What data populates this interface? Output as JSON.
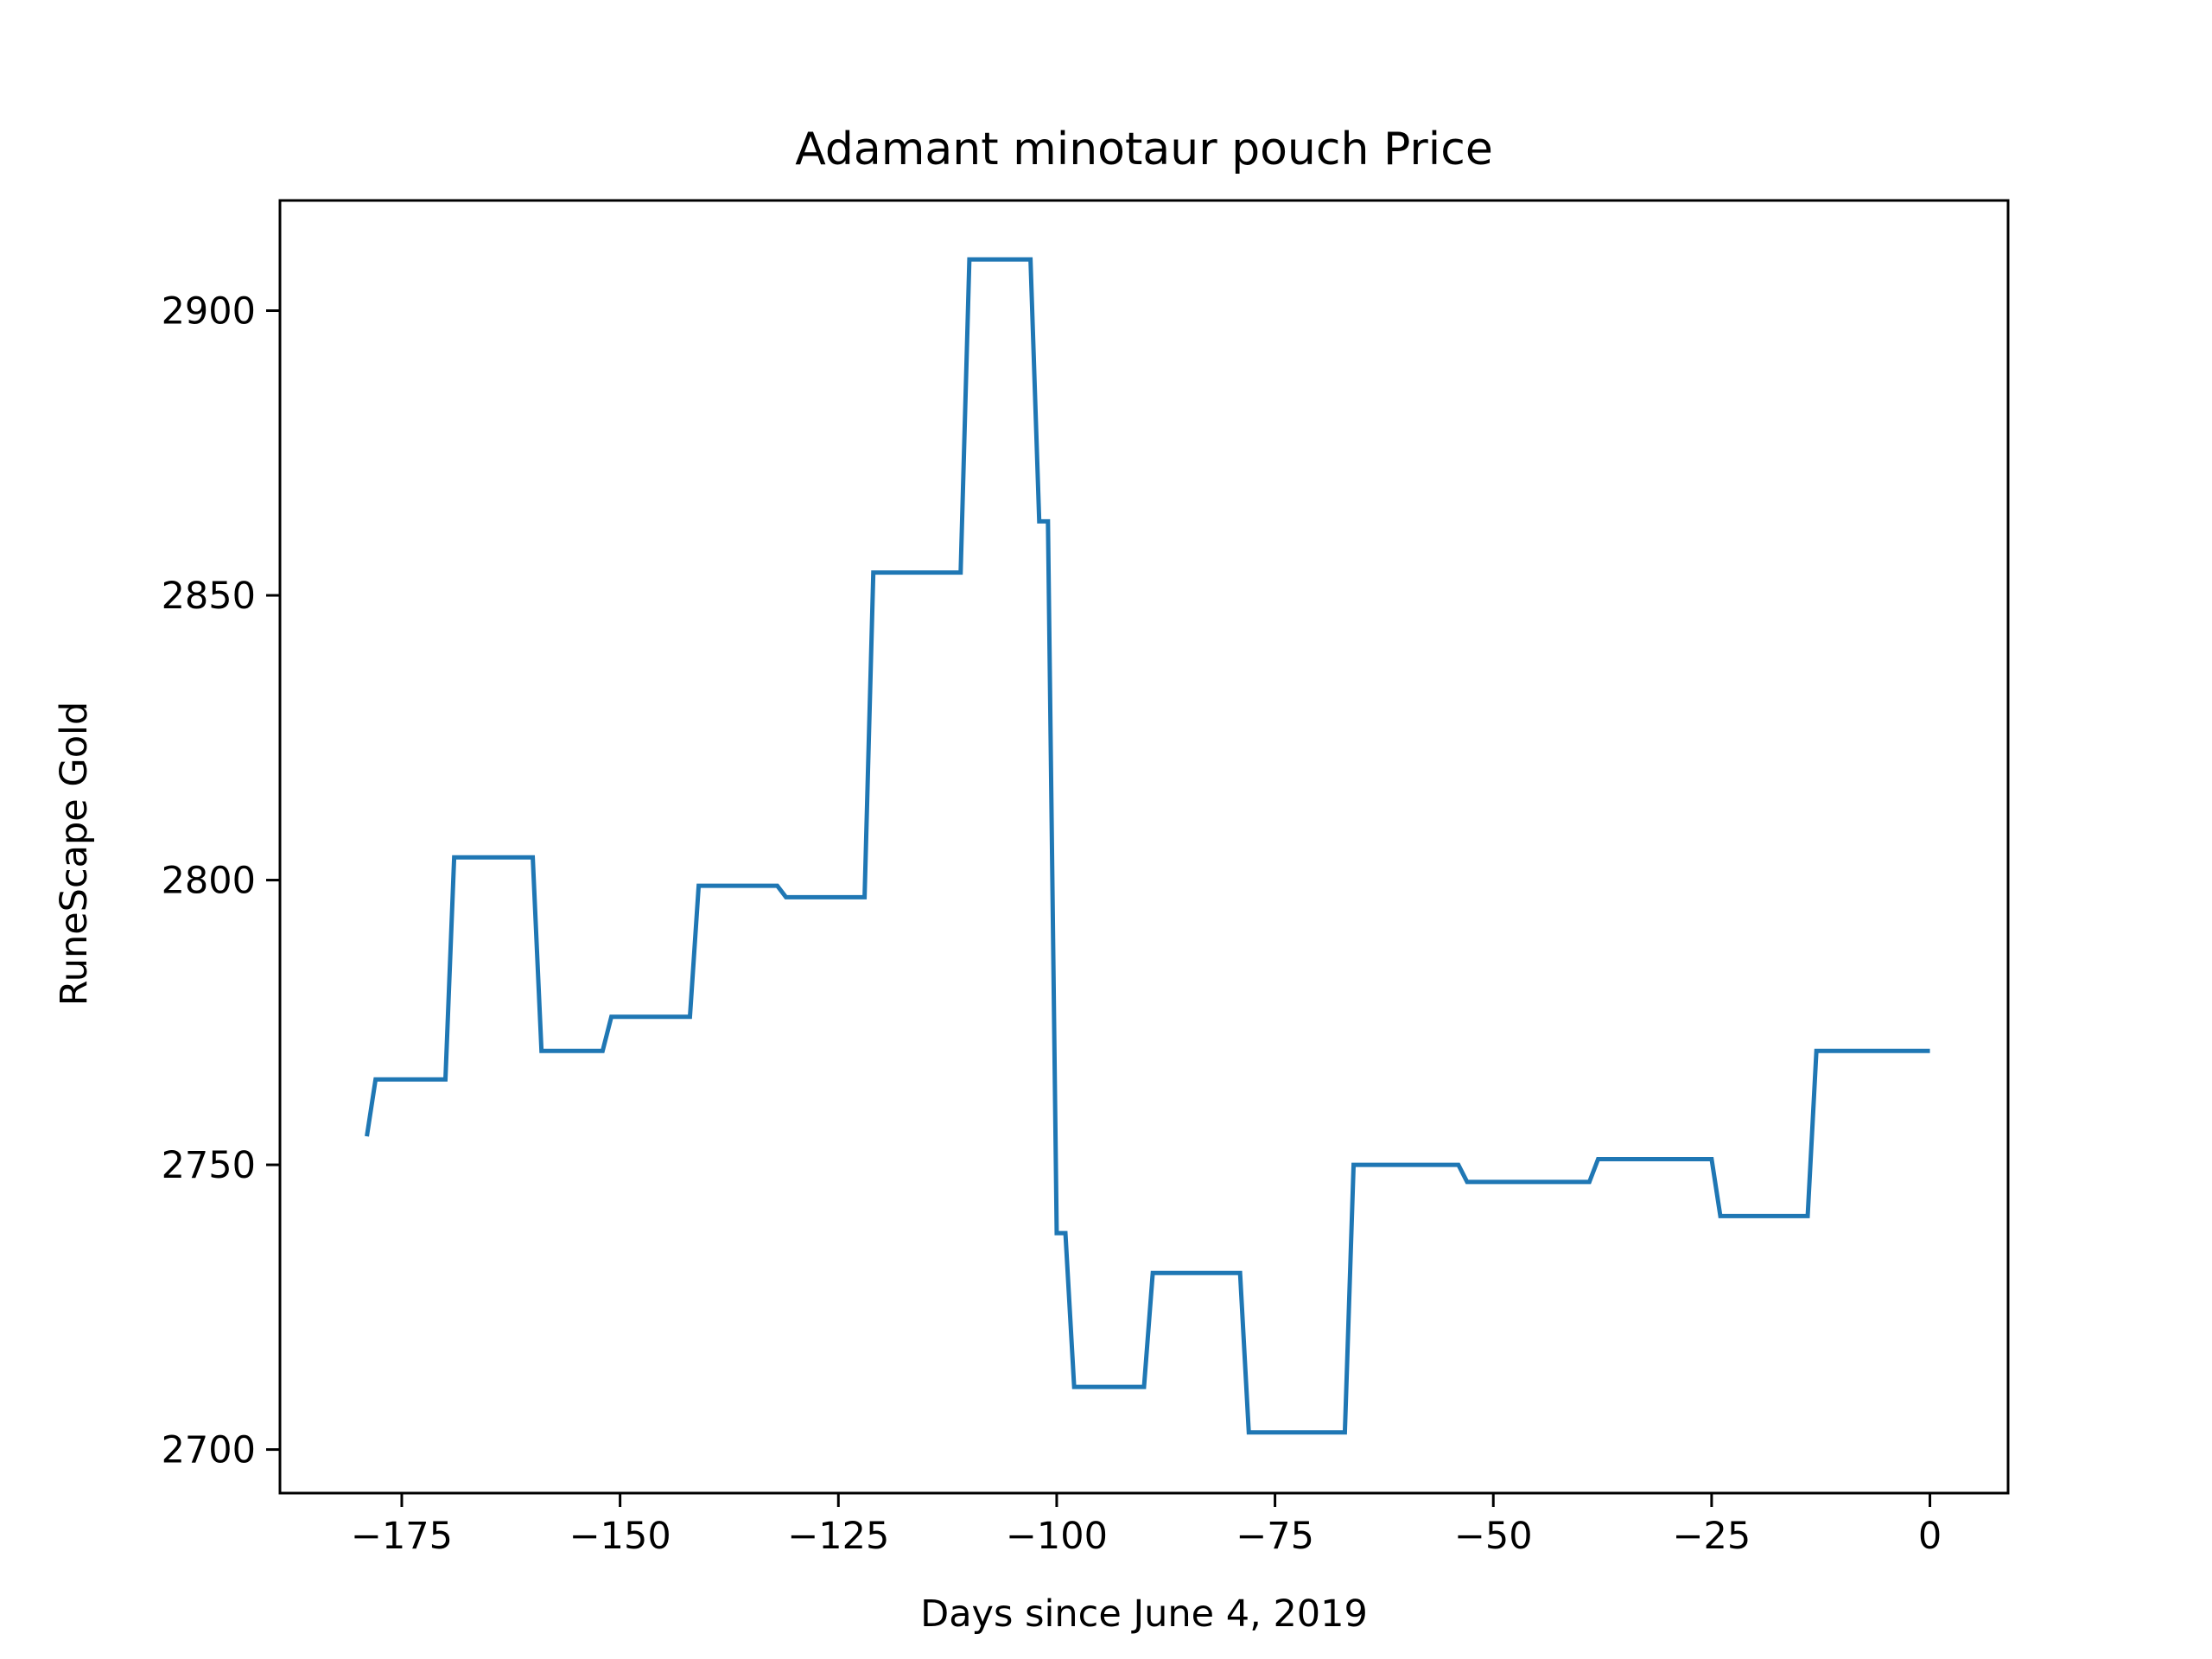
{
  "chart_data": {
    "type": "line",
    "title": "Adamant minotaur pouch Price",
    "xlabel": "Days since June 4, 2019",
    "ylabel": "RuneScape Gold",
    "xlim": [
      -188.95,
      8.95
    ],
    "ylim": [
      2692.35,
      2919.35
    ],
    "xticks": [
      -175,
      -150,
      -125,
      -100,
      -75,
      -50,
      -25,
      0
    ],
    "xtick_labels": [
      "−175",
      "−150",
      "−125",
      "−100",
      "−75",
      "−50",
      "−25",
      "0"
    ],
    "yticks": [
      2700,
      2750,
      2800,
      2850,
      2900
    ],
    "ytick_labels": [
      "2700",
      "2750",
      "2800",
      "2850",
      "2900"
    ],
    "grid": false,
    "series": [
      {
        "color": "#1f77b4",
        "x": [
          -179,
          -178,
          -170,
          -169,
          -160,
          -159,
          -152,
          -151,
          -142,
          -141,
          -132,
          -131,
          -122,
          -121,
          -111,
          -110,
          -103,
          -102,
          -101,
          -100,
          -99,
          -98,
          -90,
          -89,
          -79,
          -78,
          -67,
          -66,
          -54,
          -53,
          -39,
          -38,
          -25,
          -24,
          -14,
          -13,
          0
        ],
        "y": [
          2755,
          2765,
          2765,
          2804,
          2804,
          2770,
          2770,
          2776,
          2776,
          2799,
          2799,
          2797,
          2797,
          2854,
          2854,
          2909,
          2909,
          2863,
          2863,
          2738,
          2738,
          2711,
          2711,
          2731,
          2731,
          2703,
          2703,
          2750,
          2750,
          2747,
          2747,
          2751,
          2751,
          2741,
          2741,
          2770,
          2770
        ]
      }
    ]
  }
}
